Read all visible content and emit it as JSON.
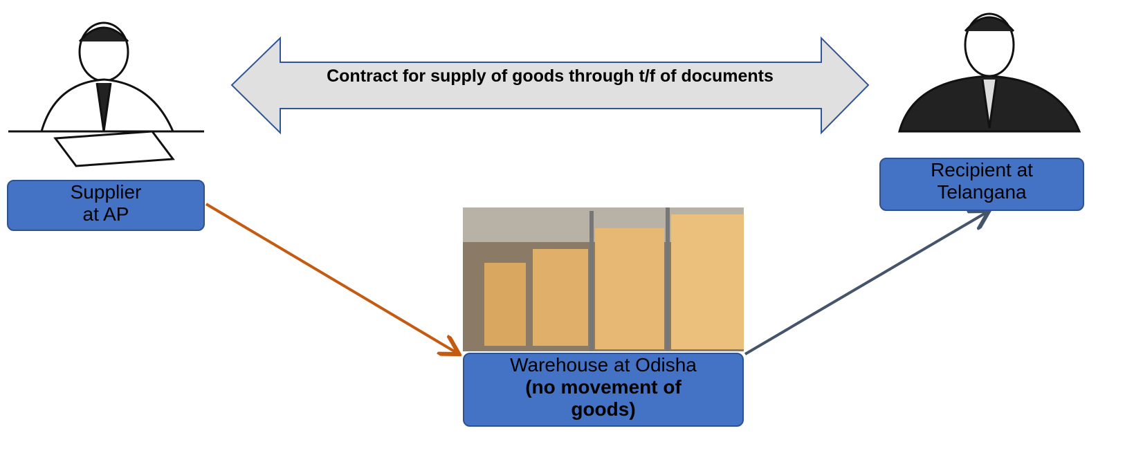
{
  "arrow_label": "Contract for supply of goods through t/f of documents",
  "supplier": {
    "lines": [
      "Supplier",
      "at AP"
    ]
  },
  "recipient": {
    "label": "Recipient at Telangana"
  },
  "warehouse": {
    "label": "Warehouse at Odisha",
    "note": "(no movement of goods)"
  }
}
